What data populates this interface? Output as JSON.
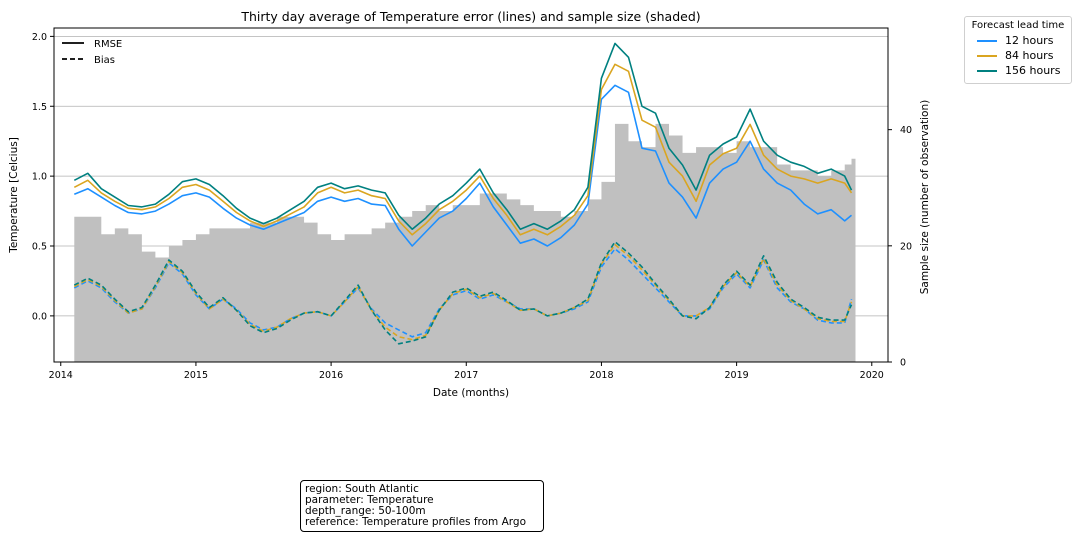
{
  "chart_data": {
    "type": "line",
    "title": "Thirty day average of Temperature error (lines) and sample size (shaded)",
    "xlabel": "Date (months)",
    "ylabel": "Temperature [Celcius]",
    "ylabel_right": "Sample size (number of observation)",
    "ylim": [
      -0.33,
      2.06
    ],
    "ylim_right": [
      0,
      57.5
    ],
    "xlim": [
      2013.95,
      2020.12
    ],
    "x_ticks": [
      "2014",
      "2015",
      "2016",
      "2017",
      "2018",
      "2019",
      "2020"
    ],
    "y_ticks": [
      "0.0",
      "0.5",
      "1.0",
      "1.5",
      "2.0"
    ],
    "y_ticks_right": [
      "0",
      "20",
      "40"
    ],
    "grid": "horizontal",
    "style_legend": {
      "placement": "top-left",
      "items": [
        {
          "label": "RMSE",
          "style": "solid"
        },
        {
          "label": "Bias",
          "style": "dashed"
        }
      ]
    },
    "lead_legend": {
      "title": "Forecast lead time",
      "placement": "outside-right",
      "items": [
        {
          "label": "12 hours",
          "color": "#1e90ff"
        },
        {
          "label": "84 hours",
          "color": "#daa520"
        },
        {
          "label": "156 hours",
          "color": "#008080"
        }
      ]
    },
    "sample_color": "#c0c0c0",
    "sample_size": {
      "x": [
        2014.1,
        2014.2,
        2014.3,
        2014.4,
        2014.5,
        2014.6,
        2014.7,
        2014.8,
        2014.9,
        2015.0,
        2015.1,
        2015.2,
        2015.3,
        2015.4,
        2015.5,
        2015.6,
        2015.7,
        2015.8,
        2015.9,
        2016.0,
        2016.1,
        2016.2,
        2016.3,
        2016.4,
        2016.5,
        2016.6,
        2016.7,
        2016.8,
        2016.9,
        2017.0,
        2017.1,
        2017.2,
        2017.3,
        2017.4,
        2017.5,
        2017.6,
        2017.7,
        2017.8,
        2017.9,
        2018.0,
        2018.1,
        2018.2,
        2018.3,
        2018.4,
        2018.5,
        2018.6,
        2018.7,
        2018.8,
        2018.9,
        2019.0,
        2019.1,
        2019.2,
        2019.3,
        2019.4,
        2019.5,
        2019.6,
        2019.7,
        2019.8,
        2019.85
      ],
      "y": [
        25,
        25,
        22,
        23,
        22,
        19,
        18,
        20,
        21,
        22,
        23,
        23,
        23,
        24,
        24,
        25,
        25,
        24,
        22,
        21,
        22,
        22,
        23,
        24,
        25,
        26,
        27,
        26,
        27,
        27,
        29,
        29,
        28,
        27,
        26,
        26,
        25,
        26,
        28,
        31,
        41,
        38,
        37,
        41,
        39,
        36,
        37,
        37,
        36,
        38,
        37,
        37,
        34,
        33,
        33,
        32,
        33,
        34,
        35
      ]
    },
    "series": [
      {
        "name": "12 hours",
        "metric": "RMSE",
        "color": "#1e90ff",
        "x": [
          2014.1,
          2014.2,
          2014.3,
          2014.4,
          2014.5,
          2014.6,
          2014.7,
          2014.8,
          2014.9,
          2015.0,
          2015.1,
          2015.2,
          2015.3,
          2015.4,
          2015.5,
          2015.6,
          2015.7,
          2015.8,
          2015.9,
          2016.0,
          2016.1,
          2016.2,
          2016.3,
          2016.4,
          2016.5,
          2016.6,
          2016.7,
          2016.8,
          2016.9,
          2017.0,
          2017.1,
          2017.2,
          2017.3,
          2017.4,
          2017.5,
          2017.6,
          2017.7,
          2017.8,
          2017.9,
          2018.0,
          2018.1,
          2018.2,
          2018.3,
          2018.4,
          2018.5,
          2018.6,
          2018.7,
          2018.8,
          2018.9,
          2019.0,
          2019.1,
          2019.2,
          2019.3,
          2019.4,
          2019.5,
          2019.6,
          2019.7,
          2019.8,
          2019.85
        ],
        "y": [
          0.87,
          0.91,
          0.85,
          0.79,
          0.74,
          0.73,
          0.75,
          0.8,
          0.86,
          0.88,
          0.85,
          0.77,
          0.7,
          0.65,
          0.62,
          0.66,
          0.7,
          0.74,
          0.82,
          0.85,
          0.82,
          0.84,
          0.8,
          0.79,
          0.62,
          0.5,
          0.6,
          0.7,
          0.75,
          0.84,
          0.95,
          0.78,
          0.65,
          0.52,
          0.55,
          0.5,
          0.56,
          0.65,
          0.8,
          1.55,
          1.65,
          1.6,
          1.2,
          1.18,
          0.95,
          0.85,
          0.7,
          0.95,
          1.05,
          1.1,
          1.25,
          1.05,
          0.95,
          0.9,
          0.8,
          0.73,
          0.76,
          0.68,
          0.72
        ]
      },
      {
        "name": "84 hours",
        "metric": "RMSE",
        "color": "#daa520",
        "x": [
          2014.1,
          2014.2,
          2014.3,
          2014.4,
          2014.5,
          2014.6,
          2014.7,
          2014.8,
          2014.9,
          2015.0,
          2015.1,
          2015.2,
          2015.3,
          2015.4,
          2015.5,
          2015.6,
          2015.7,
          2015.8,
          2015.9,
          2016.0,
          2016.1,
          2016.2,
          2016.3,
          2016.4,
          2016.5,
          2016.6,
          2016.7,
          2016.8,
          2016.9,
          2017.0,
          2017.1,
          2017.2,
          2017.3,
          2017.4,
          2017.5,
          2017.6,
          2017.7,
          2017.8,
          2017.9,
          2018.0,
          2018.1,
          2018.2,
          2018.3,
          2018.4,
          2018.5,
          2018.6,
          2018.7,
          2018.8,
          2018.9,
          2019.0,
          2019.1,
          2019.2,
          2019.3,
          2019.4,
          2019.5,
          2019.6,
          2019.7,
          2019.8,
          2019.85
        ],
        "y": [
          0.92,
          0.97,
          0.88,
          0.82,
          0.77,
          0.76,
          0.78,
          0.84,
          0.92,
          0.94,
          0.9,
          0.82,
          0.74,
          0.68,
          0.64,
          0.68,
          0.73,
          0.78,
          0.88,
          0.92,
          0.88,
          0.9,
          0.86,
          0.84,
          0.68,
          0.58,
          0.66,
          0.76,
          0.82,
          0.9,
          1.0,
          0.84,
          0.72,
          0.58,
          0.62,
          0.58,
          0.64,
          0.72,
          0.86,
          1.62,
          1.8,
          1.75,
          1.4,
          1.35,
          1.1,
          1.0,
          0.82,
          1.08,
          1.16,
          1.2,
          1.37,
          1.15,
          1.05,
          1.0,
          0.98,
          0.95,
          0.98,
          0.95,
          0.88
        ]
      },
      {
        "name": "156 hours",
        "metric": "RMSE",
        "color": "#008080",
        "x": [
          2014.1,
          2014.2,
          2014.3,
          2014.4,
          2014.5,
          2014.6,
          2014.7,
          2014.8,
          2014.9,
          2015.0,
          2015.1,
          2015.2,
          2015.3,
          2015.4,
          2015.5,
          2015.6,
          2015.7,
          2015.8,
          2015.9,
          2016.0,
          2016.1,
          2016.2,
          2016.3,
          2016.4,
          2016.5,
          2016.6,
          2016.7,
          2016.8,
          2016.9,
          2017.0,
          2017.1,
          2017.2,
          2017.3,
          2017.4,
          2017.5,
          2017.6,
          2017.7,
          2017.8,
          2017.9,
          2018.0,
          2018.1,
          2018.2,
          2018.3,
          2018.4,
          2018.5,
          2018.6,
          2018.7,
          2018.8,
          2018.9,
          2019.0,
          2019.1,
          2019.2,
          2019.3,
          2019.4,
          2019.5,
          2019.6,
          2019.7,
          2019.8,
          2019.85
        ],
        "y": [
          0.97,
          1.02,
          0.91,
          0.85,
          0.79,
          0.78,
          0.8,
          0.87,
          0.96,
          0.98,
          0.94,
          0.86,
          0.77,
          0.7,
          0.66,
          0.7,
          0.76,
          0.82,
          0.92,
          0.95,
          0.91,
          0.93,
          0.9,
          0.88,
          0.72,
          0.62,
          0.7,
          0.8,
          0.86,
          0.95,
          1.05,
          0.88,
          0.76,
          0.62,
          0.66,
          0.62,
          0.68,
          0.76,
          0.92,
          1.7,
          1.95,
          1.85,
          1.5,
          1.45,
          1.2,
          1.08,
          0.9,
          1.15,
          1.23,
          1.28,
          1.48,
          1.25,
          1.15,
          1.1,
          1.07,
          1.02,
          1.05,
          1.0,
          0.9
        ]
      },
      {
        "name": "12 hours",
        "metric": "Bias",
        "color": "#1e90ff",
        "x": [
          2014.1,
          2014.2,
          2014.3,
          2014.4,
          2014.5,
          2014.6,
          2014.7,
          2014.8,
          2014.9,
          2015.0,
          2015.1,
          2015.2,
          2015.3,
          2015.4,
          2015.5,
          2015.6,
          2015.7,
          2015.8,
          2015.9,
          2016.0,
          2016.1,
          2016.2,
          2016.3,
          2016.4,
          2016.5,
          2016.6,
          2016.7,
          2016.8,
          2016.9,
          2017.0,
          2017.1,
          2017.2,
          2017.3,
          2017.4,
          2017.5,
          2017.6,
          2017.7,
          2017.8,
          2017.9,
          2018.0,
          2018.1,
          2018.2,
          2018.3,
          2018.4,
          2018.5,
          2018.6,
          2018.7,
          2018.8,
          2018.9,
          2019.0,
          2019.1,
          2019.2,
          2019.3,
          2019.4,
          2019.5,
          2019.6,
          2019.7,
          2019.8,
          2019.85
        ],
        "y": [
          0.2,
          0.25,
          0.2,
          0.1,
          0.02,
          0.05,
          0.2,
          0.38,
          0.3,
          0.15,
          0.05,
          0.12,
          0.05,
          -0.05,
          -0.1,
          -0.08,
          -0.02,
          0.02,
          0.03,
          0.0,
          0.1,
          0.2,
          0.05,
          -0.05,
          -0.1,
          -0.15,
          -0.12,
          0.05,
          0.15,
          0.18,
          0.12,
          0.15,
          0.1,
          0.05,
          0.05,
          0.0,
          0.02,
          0.05,
          0.1,
          0.35,
          0.48,
          0.4,
          0.3,
          0.2,
          0.1,
          0.0,
          0.0,
          0.05,
          0.2,
          0.3,
          0.2,
          0.4,
          0.2,
          0.1,
          0.05,
          -0.03,
          -0.05,
          -0.05,
          0.12
        ]
      },
      {
        "name": "84 hours",
        "metric": "Bias",
        "color": "#daa520",
        "x": [
          2014.1,
          2014.2,
          2014.3,
          2014.4,
          2014.5,
          2014.6,
          2014.7,
          2014.8,
          2014.9,
          2015.0,
          2015.1,
          2015.2,
          2015.3,
          2015.4,
          2015.5,
          2015.6,
          2015.7,
          2015.8,
          2015.9,
          2016.0,
          2016.1,
          2016.2,
          2016.3,
          2016.4,
          2016.5,
          2016.6,
          2016.7,
          2016.8,
          2016.9,
          2017.0,
          2017.1,
          2017.2,
          2017.3,
          2017.4,
          2017.5,
          2017.6,
          2017.7,
          2017.8,
          2017.9,
          2018.0,
          2018.1,
          2018.2,
          2018.3,
          2018.4,
          2018.5,
          2018.6,
          2018.7,
          2018.8,
          2018.9,
          2019.0,
          2019.1,
          2019.2,
          2019.3,
          2019.4,
          2019.5,
          2019.6,
          2019.7,
          2019.8,
          2019.85
        ],
        "y": [
          0.21,
          0.26,
          0.21,
          0.11,
          0.02,
          0.05,
          0.21,
          0.39,
          0.31,
          0.16,
          0.05,
          0.12,
          0.04,
          -0.06,
          -0.11,
          -0.08,
          -0.02,
          0.02,
          0.03,
          0.0,
          0.1,
          0.21,
          0.04,
          -0.08,
          -0.15,
          -0.17,
          -0.14,
          0.04,
          0.16,
          0.19,
          0.13,
          0.16,
          0.1,
          0.04,
          0.05,
          0.0,
          0.02,
          0.06,
          0.11,
          0.37,
          0.51,
          0.43,
          0.33,
          0.22,
          0.11,
          0.0,
          0.0,
          0.06,
          0.21,
          0.31,
          0.21,
          0.41,
          0.22,
          0.11,
          0.05,
          -0.02,
          -0.04,
          -0.04,
          0.1
        ]
      },
      {
        "name": "156 hours",
        "metric": "Bias",
        "color": "#008080",
        "x": [
          2014.1,
          2014.2,
          2014.3,
          2014.4,
          2014.5,
          2014.6,
          2014.7,
          2014.8,
          2014.9,
          2015.0,
          2015.1,
          2015.2,
          2015.3,
          2015.4,
          2015.5,
          2015.6,
          2015.7,
          2015.8,
          2015.9,
          2016.0,
          2016.1,
          2016.2,
          2016.3,
          2016.4,
          2016.5,
          2016.6,
          2016.7,
          2016.8,
          2016.9,
          2017.0,
          2017.1,
          2017.2,
          2017.3,
          2017.4,
          2017.5,
          2017.6,
          2017.7,
          2017.8,
          2017.9,
          2018.0,
          2018.1,
          2018.2,
          2018.3,
          2018.4,
          2018.5,
          2018.6,
          2018.7,
          2018.8,
          2018.9,
          2019.0,
          2019.1,
          2019.2,
          2019.3,
          2019.4,
          2019.5,
          2019.6,
          2019.7,
          2019.8,
          2019.85
        ],
        "y": [
          0.22,
          0.27,
          0.22,
          0.12,
          0.03,
          0.06,
          0.22,
          0.4,
          0.32,
          0.17,
          0.06,
          0.13,
          0.04,
          -0.07,
          -0.12,
          -0.09,
          -0.03,
          0.02,
          0.03,
          0.0,
          0.11,
          0.22,
          0.04,
          -0.1,
          -0.2,
          -0.18,
          -0.15,
          0.04,
          0.17,
          0.2,
          0.14,
          0.17,
          0.11,
          0.04,
          0.05,
          0.0,
          0.02,
          0.06,
          0.12,
          0.38,
          0.53,
          0.45,
          0.35,
          0.23,
          0.12,
          0.0,
          -0.02,
          0.06,
          0.22,
          0.32,
          0.22,
          0.43,
          0.24,
          0.12,
          0.06,
          -0.01,
          -0.03,
          -0.03,
          0.08
        ]
      }
    ]
  },
  "info_box": {
    "lines": [
      "region: South Atlantic",
      "parameter: Temperature",
      "depth_range: 50-100m",
      "reference: Temperature profiles from Argo"
    ]
  }
}
